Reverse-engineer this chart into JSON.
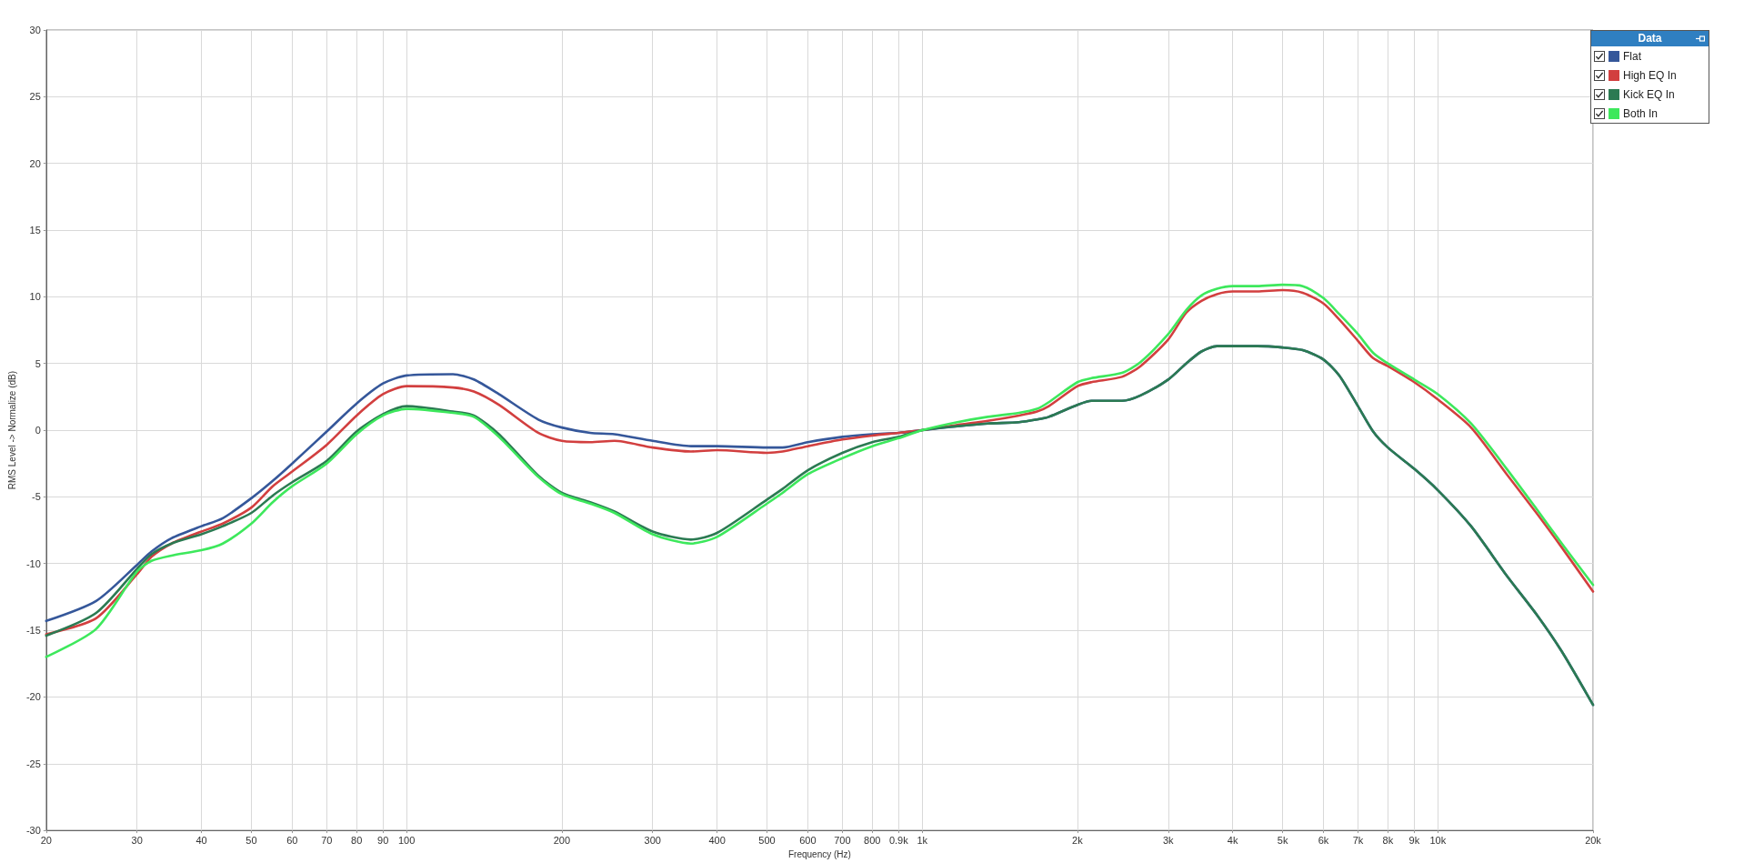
{
  "chart_data": {
    "type": "line",
    "xlabel": "Frequency (Hz)",
    "ylabel": "RMS Level -> Normalize (dB)",
    "legend_title": "Data",
    "log": "x",
    "grid": true,
    "legend": "top right",
    "xlim": [
      20,
      20000
    ],
    "xticks": [
      20,
      30,
      40,
      50,
      60,
      70,
      80,
      90,
      100,
      200,
      300,
      400,
      500,
      600,
      700,
      800,
      {
        "value": 900,
        "label": "0.9k"
      },
      {
        "value": 1000,
        "label": "1k"
      },
      {
        "value": 2000,
        "label": "2k"
      },
      {
        "value": 3000,
        "label": "3k"
      },
      {
        "value": 4000,
        "label": "4k"
      },
      {
        "value": 5000,
        "label": "5k"
      },
      {
        "value": 6000,
        "label": "6k"
      },
      {
        "value": 7000,
        "label": "7k"
      },
      {
        "value": 8000,
        "label": "8k"
      },
      {
        "value": 9000,
        "label": "9k"
      },
      {
        "value": 10000,
        "label": "10k"
      },
      {
        "value": 20000,
        "label": "20k"
      }
    ],
    "ylim": [
      -30,
      30
    ],
    "yticks": [
      -30,
      -25,
      -20,
      -15,
      -10,
      -5,
      0,
      5,
      10,
      15,
      20,
      25,
      30
    ],
    "x": [
      20,
      25,
      30,
      32,
      35,
      40,
      44,
      50,
      55,
      60,
      70,
      80,
      90,
      100,
      123,
      135,
      151,
      180,
      200,
      227,
      253,
      300,
      356,
      400,
      500,
      536,
      600,
      700,
      800,
      900,
      1000,
      1170,
      1340,
      1540,
      1670,
      1760,
      2000,
      2130,
      2440,
      2650,
      3000,
      3250,
      3480,
      3730,
      4000,
      4460,
      5000,
      5470,
      6000,
      6440,
      7000,
      7490,
      8000,
      9000,
      10000,
      11600,
      13600,
      15600,
      17400,
      20000
    ],
    "series": [
      {
        "name": "Flat",
        "color": "#35579a",
        "values": [
          -14.3,
          -12.8,
          -10.1,
          -9.1,
          -8.1,
          -7.2,
          -6.6,
          -5.1,
          -3.8,
          -2.5,
          -0.1,
          2.0,
          3.5,
          4.1,
          4.2,
          3.8,
          2.7,
          0.8,
          0.2,
          -0.2,
          -0.3,
          -0.8,
          -1.2,
          -1.2,
          -1.3,
          -1.3,
          -0.9,
          -0.5,
          -0.3,
          -0.2,
          0,
          0.3,
          0.5,
          0.6,
          0.8,
          1.0,
          1.9,
          2.2,
          2.2,
          2.6,
          3.8,
          5.0,
          5.9,
          6.3,
          6.3,
          6.3,
          6.2,
          6.0,
          5.3,
          4.1,
          1.8,
          -0.1,
          -1.3,
          -2.9,
          -4.5,
          -7.2,
          -10.9,
          -13.9,
          -16.6,
          -20.6
        ]
      },
      {
        "name": "High EQ In",
        "color": "#d23f3f",
        "values": [
          -15.3,
          -14.1,
          -10.8,
          -9.5,
          -8.5,
          -7.6,
          -7.0,
          -5.8,
          -4.2,
          -3.1,
          -1.1,
          1.1,
          2.7,
          3.3,
          3.2,
          2.9,
          1.9,
          -0.2,
          -0.8,
          -0.9,
          -0.8,
          -1.3,
          -1.6,
          -1.5,
          -1.7,
          -1.6,
          -1.2,
          -0.7,
          -0.4,
          -0.2,
          0,
          0.4,
          0.7,
          1.1,
          1.4,
          1.8,
          3.3,
          3.6,
          4.0,
          4.8,
          6.8,
          8.8,
          9.7,
          10.2,
          10.4,
          10.4,
          10.5,
          10.3,
          9.5,
          8.3,
          6.7,
          5.4,
          4.8,
          3.6,
          2.3,
          0.2,
          -3.3,
          -6.3,
          -8.8,
          -12.1
        ]
      },
      {
        "name": "Kick EQ In",
        "color": "#2b7a52",
        "values": [
          -15.4,
          -13.7,
          -10.4,
          -9.3,
          -8.5,
          -7.8,
          -7.2,
          -6.2,
          -4.9,
          -3.9,
          -2.3,
          -0.1,
          1.2,
          1.8,
          1.4,
          1.1,
          -0.3,
          -3.4,
          -4.7,
          -5.4,
          -6.1,
          -7.6,
          -8.2,
          -7.7,
          -5.2,
          -4.4,
          -3.0,
          -1.7,
          -0.9,
          -0.5,
          0,
          0.3,
          0.5,
          0.6,
          0.8,
          1.0,
          1.9,
          2.2,
          2.2,
          2.6,
          3.8,
          5.0,
          5.9,
          6.3,
          6.3,
          6.3,
          6.2,
          6.0,
          5.3,
          4.1,
          1.8,
          -0.1,
          -1.3,
          -2.9,
          -4.5,
          -7.2,
          -10.9,
          -13.9,
          -16.6,
          -20.6
        ]
      },
      {
        "name": "Both In",
        "color": "#3de85c",
        "values": [
          -17.0,
          -14.9,
          -10.6,
          -9.8,
          -9.4,
          -9.0,
          -8.5,
          -7.0,
          -5.4,
          -4.2,
          -2.5,
          -0.3,
          1.1,
          1.6,
          1.3,
          1.0,
          -0.5,
          -3.5,
          -4.8,
          -5.5,
          -6.2,
          -7.8,
          -8.5,
          -8.0,
          -5.5,
          -4.7,
          -3.3,
          -2.1,
          -1.2,
          -0.6,
          0,
          0.6,
          1.0,
          1.3,
          1.6,
          2.1,
          3.6,
          3.9,
          4.3,
          5.1,
          7.2,
          9.0,
          10.1,
          10.6,
          10.8,
          10.8,
          10.9,
          10.8,
          9.9,
          8.7,
          7.2,
          5.8,
          5.0,
          3.8,
          2.7,
          0.5,
          -2.9,
          -6.0,
          -8.5,
          -11.6
        ]
      }
    ]
  }
}
